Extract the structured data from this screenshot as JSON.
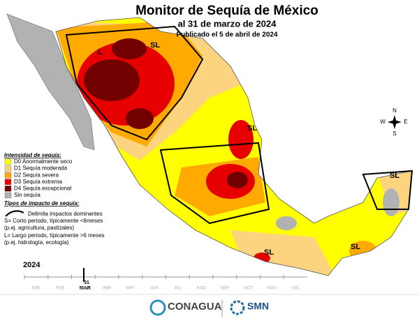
{
  "header": {
    "title": "Monitor de Sequía de México",
    "subtitle": "al 31 de marzo de 2024",
    "published": "Publicado el 5 de abril de 2024"
  },
  "legend": {
    "intensity_title": "Intensidad de sequía:",
    "items": [
      {
        "label": "D0 Anormalmente seco",
        "color": "#ffff00"
      },
      {
        "label": "D1 Sequía moderada",
        "color": "#fcd37f"
      },
      {
        "label": "D2 Sequía severa",
        "color": "#ffaa00"
      },
      {
        "label": "D3 Sequía extrema",
        "color": "#e60000"
      },
      {
        "label": "D4 Sequía excepcional",
        "color": "#730000"
      },
      {
        "label": "Sin sequía",
        "color": "#b2b2b2"
      }
    ],
    "impact_title": "Tipos de impacto de sequía:",
    "impact_items": [
      "Delimita impactos dominantes",
      "S= Corto periodo, típicamente <6meses",
      "(p.ej. agricultura, pastizales)",
      "L= Largo periodo, típicamente >6 meses",
      "(p.ej. hidrología, ecología)"
    ]
  },
  "map_labels": [
    "L",
    "SL",
    "SL",
    "SL",
    "SL",
    "SL"
  ],
  "compass": [
    "N",
    "S",
    "E",
    "W"
  ],
  "timeline": {
    "year": "2024",
    "months": [
      "ENE",
      "FEB",
      "MAR",
      "ABR",
      "MAY",
      "JUN",
      "JUL",
      "AGO",
      "SEP",
      "OCT",
      "NOV",
      "DIC"
    ],
    "current_day": "31",
    "current_month": "MAR"
  },
  "logos": [
    "CONAGUA",
    "SMN"
  ]
}
